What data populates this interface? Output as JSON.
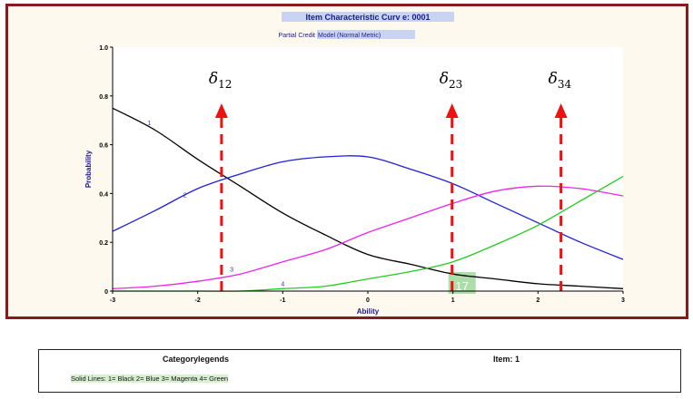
{
  "chart_data": {
    "type": "line",
    "title": "Item Characteristic Curv e: 0001",
    "subtitle": [
      "Partial Credit",
      "Model (Normal Metric)"
    ],
    "xlabel": "Ability",
    "ylabel": "Probability",
    "xlim": [
      -3,
      3
    ],
    "ylim": [
      0,
      1.0
    ],
    "x_ticks": [
      "-3",
      "-2",
      "-1",
      "0",
      "1",
      "2",
      "3"
    ],
    "y_ticks": [
      "0",
      "0.2",
      "0.4",
      "0.6",
      "0.8",
      "1.0"
    ],
    "grid": false,
    "x": [
      -3,
      -2.5,
      -2,
      -1.5,
      -1,
      -0.5,
      0,
      0.5,
      1,
      1.5,
      2,
      2.5,
      3
    ],
    "series": [
      {
        "name": "1",
        "color": "#000000",
        "values": [
          0.75,
          0.66,
          0.54,
          0.43,
          0.32,
          0.23,
          0.15,
          0.11,
          0.07,
          0.05,
          0.03,
          0.02,
          0.01
        ],
        "label_at": [
          -2.57,
          0.68
        ]
      },
      {
        "name": "2",
        "color": "#1f1fdd",
        "values": [
          0.245,
          0.33,
          0.42,
          0.48,
          0.53,
          0.55,
          0.55,
          0.5,
          0.44,
          0.36,
          0.28,
          0.2,
          0.13
        ],
        "label_at": [
          -2.15,
          0.385
        ]
      },
      {
        "name": "3",
        "color": "#ee22ee",
        "values": [
          0.01,
          0.02,
          0.04,
          0.07,
          0.12,
          0.17,
          0.24,
          0.3,
          0.36,
          0.41,
          0.43,
          0.42,
          0.39
        ],
        "label_at": [
          -1.6,
          0.08
        ]
      },
      {
        "name": "4",
        "color": "#22cc22",
        "values": [
          0.0,
          0.0,
          0.0,
          0.0,
          0.01,
          0.02,
          0.05,
          0.08,
          0.12,
          0.19,
          0.27,
          0.37,
          0.47
        ],
        "label_at": [
          -1.0,
          0.02
        ]
      }
    ],
    "annotations": [
      {
        "label": "δ",
        "sub": "12",
        "x": -1.72
      },
      {
        "label": "δ",
        "sub": "23",
        "x": 0.99
      },
      {
        "label": "δ",
        "sub": "34",
        "x": 2.27
      }
    ],
    "threshold_color": "#ee1111",
    "page_marker": "17"
  },
  "legend_panel": {
    "title": "Categorylegends",
    "item": "Item: 1",
    "text": "Solid Lines: 1= Black  2= Blue  3= Magenta  4= Green"
  }
}
